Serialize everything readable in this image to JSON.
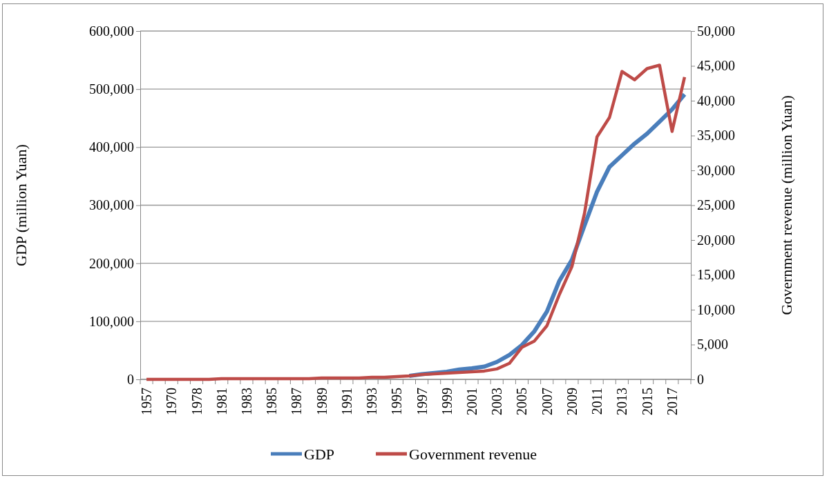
{
  "chart_data": {
    "type": "line",
    "categories": [
      "1957",
      null,
      "1970",
      null,
      "1978",
      null,
      "1981",
      null,
      "1983",
      null,
      "1985",
      null,
      "1987",
      null,
      "1989",
      null,
      "1991",
      null,
      "1993",
      null,
      "1995",
      null,
      "1997",
      null,
      "1999",
      null,
      "2001",
      null,
      "2003",
      null,
      "2005",
      null,
      "2007",
      null,
      "2009",
      null,
      "2011",
      null,
      "2013",
      null,
      "2015",
      null,
      "2017",
      null
    ],
    "series": [
      {
        "name": "GDP",
        "color": "#4a7ebb",
        "values": [
          null,
          null,
          null,
          null,
          null,
          null,
          null,
          null,
          null,
          null,
          null,
          null,
          null,
          null,
          null,
          null,
          null,
          null,
          null,
          null,
          null,
          6000,
          9000,
          11000,
          13000,
          17000,
          19000,
          22000,
          30000,
          42000,
          59000,
          83000,
          117000,
          170000,
          206000,
          265000,
          323000,
          366000,
          386000,
          406000,
          423000,
          444000,
          465000,
          491000
        ]
      },
      {
        "name": "Government revenue",
        "color": "#be4b48",
        "axis": "y2",
        "values": [
          0,
          0,
          0,
          0,
          0,
          0,
          100,
          100,
          100,
          100,
          100,
          100,
          100,
          100,
          200,
          200,
          200,
          200,
          300,
          300,
          400,
          500,
          700,
          800,
          900,
          1000,
          1100,
          1200,
          1500,
          2300,
          4600,
          5500,
          7700,
          12200,
          16200,
          23800,
          34800,
          37600,
          44200,
          43000,
          44600,
          45100,
          35600,
          43400
        ]
      }
    ],
    "ylabel": "GDP (million Yuan)",
    "y2label": "Government revenue (million Yuan)",
    "ylim": [
      0,
      600000
    ],
    "yticks": [
      {
        "value": 0,
        "label": "0"
      },
      {
        "value": 100000,
        "label": "100,000"
      },
      {
        "value": 200000,
        "label": "200,000"
      },
      {
        "value": 300000,
        "label": "300,000"
      },
      {
        "value": 400000,
        "label": "400,000"
      },
      {
        "value": 500000,
        "label": "500,000"
      },
      {
        "value": 600000,
        "label": "600,000"
      }
    ],
    "y2lim": [
      0,
      50000
    ],
    "y2ticks": [
      {
        "value": 0,
        "label": "0"
      },
      {
        "value": 5000,
        "label": "5,000"
      },
      {
        "value": 10000,
        "label": "10,000"
      },
      {
        "value": 15000,
        "label": "15,000"
      },
      {
        "value": 20000,
        "label": "20,000"
      },
      {
        "value": 25000,
        "label": "25,000"
      },
      {
        "value": 30000,
        "label": "30,000"
      },
      {
        "value": 35000,
        "label": "35,000"
      },
      {
        "value": 40000,
        "label": "40,000"
      },
      {
        "value": 45000,
        "label": "45,000"
      },
      {
        "value": 50000,
        "label": "50,000"
      }
    ],
    "grid": "y",
    "legend": "bottom",
    "marker": "none",
    "line_style": "solid"
  }
}
